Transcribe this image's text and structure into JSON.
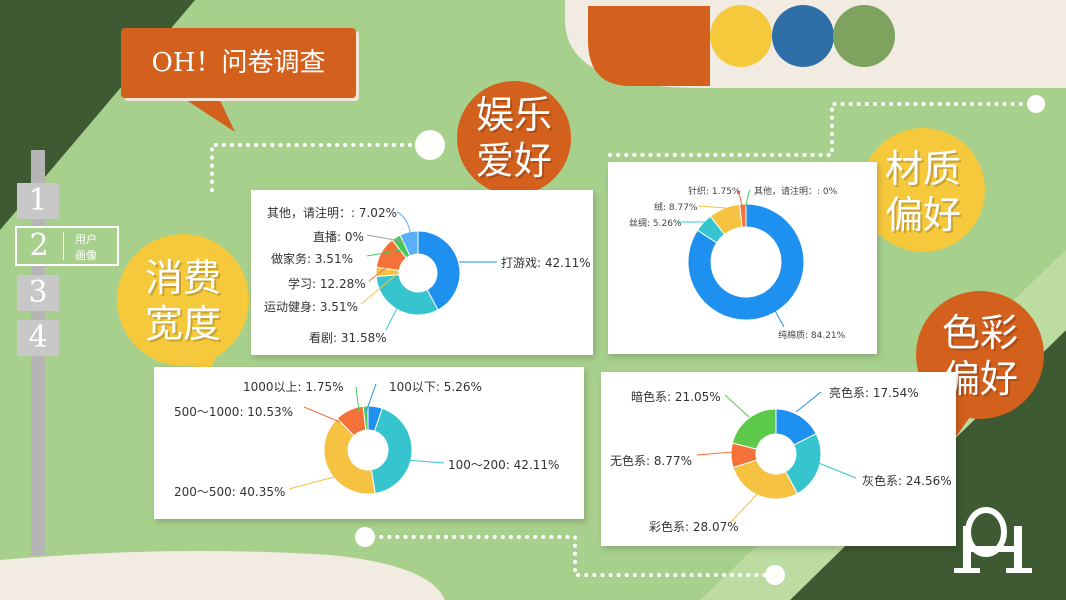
{
  "title": "OH！问卷调查",
  "nav": {
    "items": [
      {
        "num": "1"
      },
      {
        "num": "2",
        "label_line1": "用户",
        "label_line2": "画像"
      },
      {
        "num": "3"
      },
      {
        "num": "4"
      }
    ]
  },
  "bubbles": {
    "entertainment": {
      "line1": "娱乐",
      "line2": "爱好"
    },
    "material": {
      "line1": "材质",
      "line2": "偏好"
    },
    "spending": {
      "line1": "消费",
      "line2": "宽度"
    },
    "color": {
      "line1": "色彩",
      "line2": "偏好"
    }
  },
  "colors": {
    "background": "#a8d08d",
    "dark_green": "#3d5a32",
    "orange": "#d3601c",
    "yellow": "#f6c83c",
    "blue": "#2e6fa8",
    "muted_green": "#7ea35f",
    "cream": "#f1ebe1"
  },
  "logo": "OH",
  "chart_data": [
    {
      "type": "pie",
      "name": "entertainment",
      "slices": [
        {
          "label": "打游戏: 42.11%",
          "value": 42.11,
          "color": "#1e90ef"
        },
        {
          "label": "看剧: 31.58%",
          "value": 31.58,
          "color": "#36c5cf"
        },
        {
          "label": "运动健身: 3.51%",
          "value": 3.51,
          "color": "#f5c242"
        },
        {
          "label": "学习: 12.28%",
          "value": 12.28,
          "color": "#f5713a"
        },
        {
          "label": "做家务: 3.51%",
          "value": 3.51,
          "color": "#47c95a"
        },
        {
          "label": "直播: 0%",
          "value": 0,
          "color": "#a0a0a0"
        },
        {
          "label": "其他，请注明：: 7.02%",
          "value": 7.02,
          "color": "#5bb0f5"
        }
      ]
    },
    {
      "type": "pie",
      "name": "material",
      "slices": [
        {
          "label": "纯棉质: 84.21%",
          "value": 84.21,
          "color": "#1e90ef"
        },
        {
          "label": "丝绸: 5.26%",
          "value": 5.26,
          "color": "#36c5cf"
        },
        {
          "label": "绒: 8.77%",
          "value": 8.77,
          "color": "#f5c242"
        },
        {
          "label": "针织: 1.75%",
          "value": 1.75,
          "color": "#f5713a"
        },
        {
          "label": "其他，请注明：: 0%",
          "value": 0,
          "color": "#47c95a"
        }
      ]
    },
    {
      "type": "pie",
      "name": "spending",
      "slices": [
        {
          "label": "100以下: 5.26%",
          "value": 5.26,
          "color": "#1e90ef"
        },
        {
          "label": "100～200: 42.11%",
          "value": 42.11,
          "color": "#36c5cf"
        },
        {
          "label": "200～500: 40.35%",
          "value": 40.35,
          "color": "#f5c242"
        },
        {
          "label": "500～1000: 10.53%",
          "value": 10.53,
          "color": "#f5713a"
        },
        {
          "label": "1000以上: 1.75%",
          "value": 1.75,
          "color": "#47c95a"
        }
      ]
    },
    {
      "type": "pie",
      "name": "color",
      "slices": [
        {
          "label": "亮色系: 17.54%",
          "value": 17.54,
          "color": "#1e90ef"
        },
        {
          "label": "灰色系: 24.56%",
          "value": 24.56,
          "color": "#36c5cf"
        },
        {
          "label": "彩色系: 28.07%",
          "value": 28.07,
          "color": "#f5c242"
        },
        {
          "label": "无色系: 8.77%",
          "value": 8.77,
          "color": "#f5713a"
        },
        {
          "label": "暗色系: 21.05%",
          "value": 21.05,
          "color": "#5dc94a"
        }
      ]
    }
  ]
}
